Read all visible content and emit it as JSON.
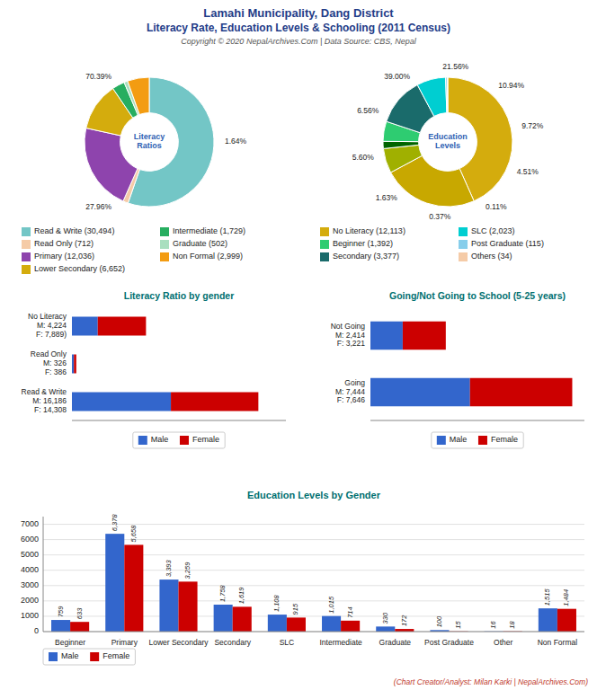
{
  "title": "Lamahi Municipality, Dang District",
  "subtitle": "Literacy Rate, Education Levels & Schooling (2011 Census)",
  "annotations": [
    "Copyright © 2020 NepalArchives.Com | Data Source: CBS, Nepal"
  ],
  "chart_data": [
    {
      "type": "pie",
      "title": "Literacy\nRatios",
      "categories": [
        "Read & Write (30,494)",
        "Read Only (712)",
        "Primary (12,036)",
        "Lower Secondary (6,652)",
        "Intermediate (1,729)",
        "Graduate (502)",
        "Non Formal (2,999)"
      ],
      "values": [
        30494,
        712,
        12036,
        6652,
        1729,
        502,
        2999
      ],
      "colors": [
        "#73C6C6",
        "#F5CBA7",
        "#8E44AD",
        "#D4AC0D",
        "#27AE60",
        "#A9DFBF",
        "#F39C12"
      ],
      "annotations": [
        "70.39%",
        "1.64%",
        "27.96%"
      ],
      "legend": "bottom"
    },
    {
      "type": "pie",
      "title": "Education\nLevels",
      "categories": [
        "No Literacy (12,113)",
        null,
        null,
        null,
        "Beginner (1,392)",
        "Secondary (3,377)",
        "SLC (2,023)",
        "Post Graduate (115)",
        "Others (34)"
      ],
      "values": [
        12113,
        6652,
        1729,
        502,
        1392,
        3377,
        2023,
        115,
        34
      ],
      "colors": [
        "#D4AC0D",
        "#C8A800",
        "#A0B000",
        "#006400",
        "#2ECC71",
        "#1A6B6B",
        "#00CED1",
        "#87CEEB",
        "#F5CBA7"
      ],
      "annotations": [
        "39.00%",
        "21.56%",
        "10.94%",
        "9.72%",
        "4.51%",
        "0.11%",
        "0.37%",
        "1.63%",
        "5.60%",
        "6.56%"
      ],
      "legend": "bottom"
    },
    {
      "type": "bar",
      "orientation": "horizontal",
      "stacked": true,
      "title": "Literacy Ratio by gender",
      "categories": [
        "Read & Write\nM: 16,186\nF: 14,308",
        "Read Only\nM: 326\nF: 386",
        "No Literacy\nM: 4,224\nF: 7,889)"
      ],
      "series": [
        {
          "name": "Male",
          "color": "#3366CC",
          "values": [
            16186,
            326,
            4224
          ]
        },
        {
          "name": "Female",
          "color": "#CC0000",
          "values": [
            14308,
            386,
            7889
          ]
        }
      ],
      "xlim": [
        0,
        35000
      ],
      "tick_labels": "y",
      "legend": "bottom"
    },
    {
      "type": "bar",
      "orientation": "horizontal",
      "stacked": true,
      "title": "Going/Not Going to School (5-25 years)",
      "categories": [
        "Going\nM: 7,444\nF: 7,646",
        "Not Going\nM: 2,414\nF: 3,221"
      ],
      "series": [
        {
          "name": "Male",
          "color": "#3366CC",
          "values": [
            7444,
            2414
          ]
        },
        {
          "name": "Female",
          "color": "#CC0000",
          "values": [
            7646,
            3221
          ]
        }
      ],
      "xlim": [
        0,
        16000
      ],
      "tick_labels": "y",
      "legend": "bottom"
    },
    {
      "type": "bar",
      "title": "Education Levels by Gender",
      "categories": [
        "Beginner",
        "Primary",
        "Lower Secondary",
        "Secondary",
        "SLC",
        "Intermediate",
        "Graduate",
        "Post Graduate",
        "Other",
        "Non Formal"
      ],
      "series": [
        {
          "name": "Male",
          "color": "#3366CC",
          "values": [
            759,
            6378,
            3393,
            1758,
            1108,
            1015,
            330,
            100,
            16,
            1515
          ],
          "value_labels": [
            "759",
            "6,378",
            "3,393",
            "1,758",
            "1,108",
            "1,015",
            "330",
            "100",
            "16",
            "1,515"
          ]
        },
        {
          "name": "Female",
          "color": "#CC0000",
          "values": [
            633,
            5658,
            3259,
            1619,
            915,
            714,
            172,
            15,
            18,
            1484
          ],
          "value_labels": [
            "633",
            "5,658",
            "3,259",
            "1,619",
            "915",
            "714",
            "172",
            "15",
            "18",
            "1,484"
          ]
        }
      ],
      "ylim": [
        0,
        7500
      ],
      "yticks": [
        0,
        1000,
        2000,
        3000,
        4000,
        5000,
        6000,
        7000
      ],
      "grid": true,
      "data_labels": true,
      "legend": "lower left",
      "annotations": [
        "(Chart Creator/Analyst: Milan Karki | NepalArchives.Com)"
      ]
    }
  ]
}
